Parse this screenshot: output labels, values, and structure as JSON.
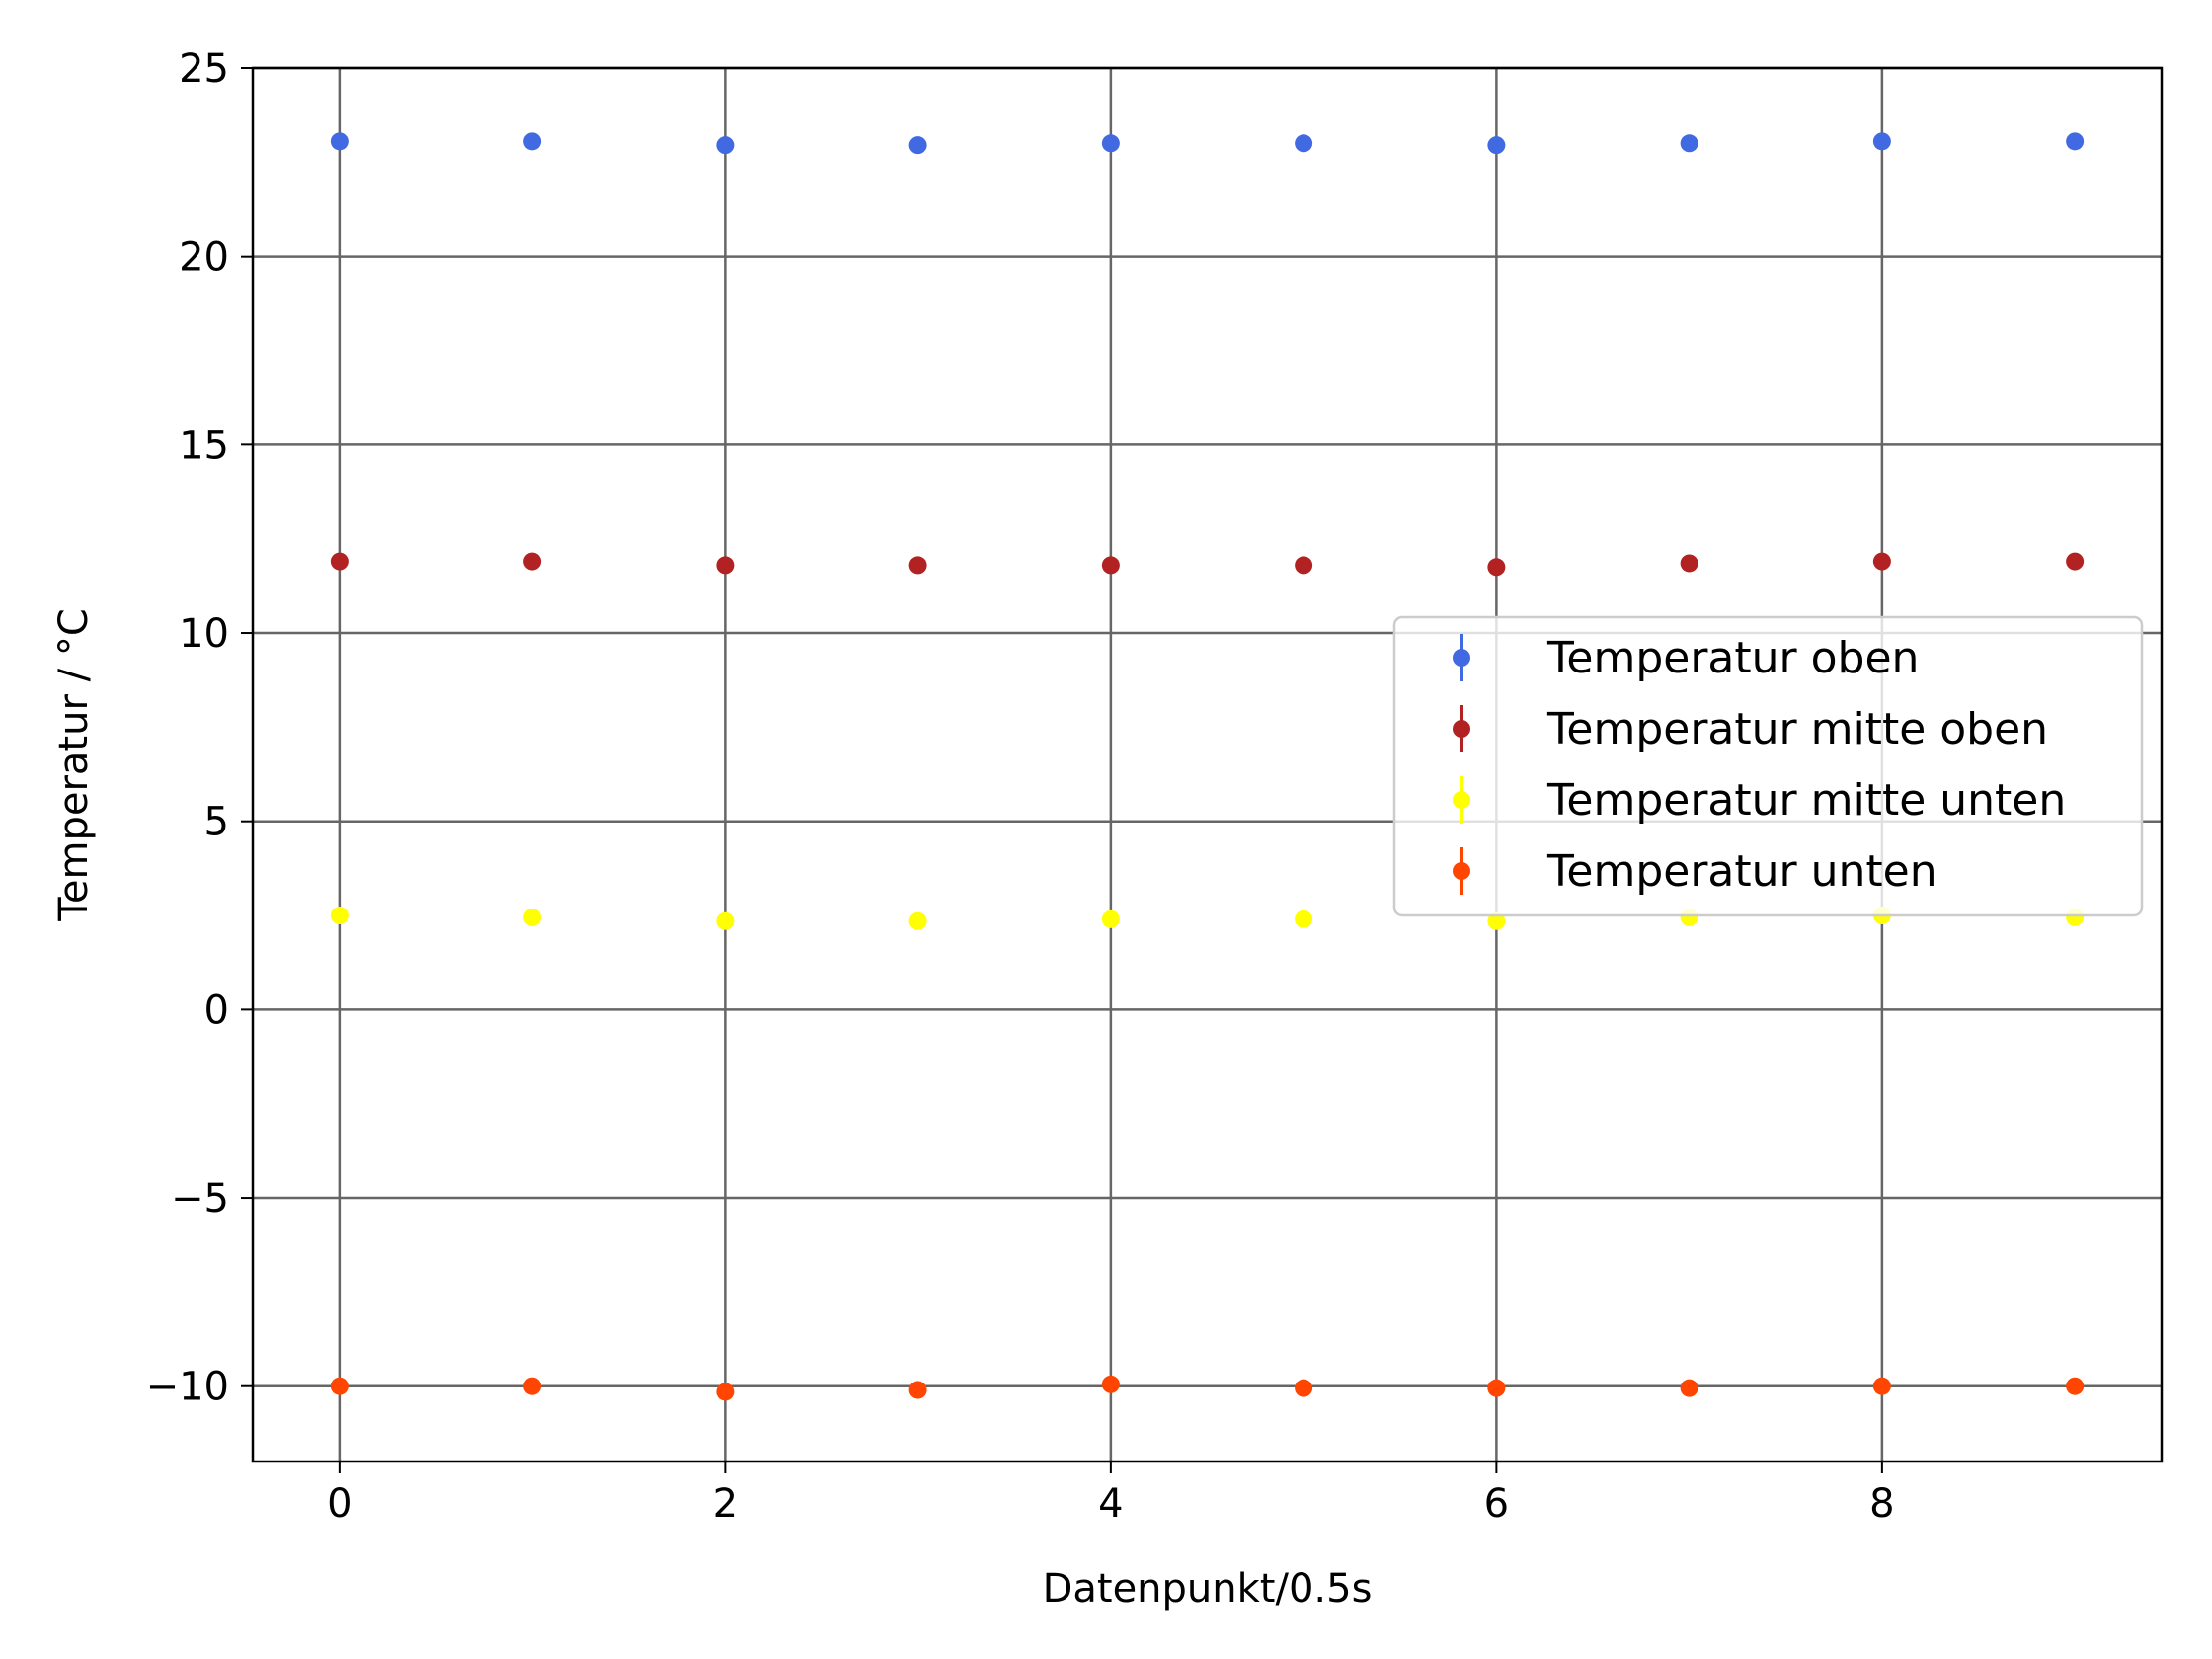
{
  "chart_data": {
    "type": "scatter",
    "title": "",
    "xlabel": "Datenpunkt/0.5s",
    "ylabel": "Temperatur / °C",
    "xlim": [
      -0.45,
      9.45
    ],
    "ylim": [
      -12,
      25
    ],
    "xticks": [
      0,
      2,
      4,
      6,
      8
    ],
    "xtick_labels": [
      "0",
      "2",
      "4",
      "6",
      "8"
    ],
    "yticks": [
      -10,
      -5,
      0,
      5,
      10,
      15,
      20,
      25
    ],
    "ytick_labels": [
      "−10",
      "−5",
      "0",
      "5",
      "10",
      "15",
      "20",
      "25"
    ],
    "grid": true,
    "legend_position": "center-right",
    "x": [
      0,
      1,
      2,
      3,
      4,
      5,
      6,
      7,
      8,
      9
    ],
    "series": [
      {
        "name": "Temperatur oben",
        "color": "#4169e1",
        "error": 0.1,
        "values": [
          23.05,
          23.05,
          22.95,
          22.95,
          23.0,
          23.0,
          22.95,
          23.0,
          23.05,
          23.05
        ]
      },
      {
        "name": "Temperatur mitte oben",
        "color": "#b22222",
        "error": 0.1,
        "values": [
          11.9,
          11.9,
          11.8,
          11.8,
          11.8,
          11.8,
          11.75,
          11.85,
          11.9,
          11.9
        ]
      },
      {
        "name": "Temperatur mitte unten",
        "color": "#ffff00",
        "error": 0.1,
        "values": [
          2.5,
          2.45,
          2.35,
          2.35,
          2.4,
          2.4,
          2.35,
          2.45,
          2.5,
          2.45
        ]
      },
      {
        "name": "Temperatur unten",
        "color": "#ff4500",
        "error": 0.1,
        "values": [
          -10.0,
          -10.0,
          -10.15,
          -10.1,
          -9.95,
          -10.05,
          -10.05,
          -10.05,
          -10.0,
          -10.0
        ]
      }
    ]
  }
}
